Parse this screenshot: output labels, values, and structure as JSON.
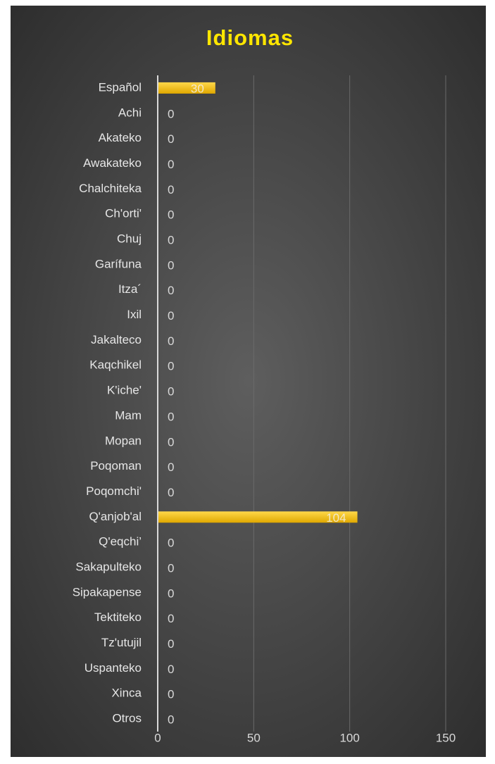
{
  "chart_data": {
    "type": "bar",
    "orientation": "horizontal",
    "title": "Idiomas",
    "categories": [
      "Español",
      "Achi",
      "Akateko",
      "Awakateko",
      "Chalchiteka",
      "Ch'orti'",
      "Chuj",
      "Garífuna",
      "Itza´",
      "Ixil",
      "Jakalteco",
      "Kaqchikel",
      "K'iche'",
      "Mam",
      "Mopan",
      "Poqoman",
      "Poqomchi'",
      "Q'anjob'al",
      "Q'eqchi’",
      "Sakapulteko",
      "Sipakapense",
      "Tektiteko",
      "Tz'utujil",
      "Uspanteko",
      "Xinca",
      "Otros"
    ],
    "values": [
      30,
      0,
      0,
      0,
      0,
      0,
      0,
      0,
      0,
      0,
      0,
      0,
      0,
      0,
      0,
      0,
      0,
      104,
      0,
      0,
      0,
      0,
      0,
      0,
      0,
      0
    ],
    "color": "#f5bd00",
    "xlim": [
      0,
      160
    ],
    "xticks": [
      0,
      50,
      100,
      150
    ],
    "grid": true
  }
}
